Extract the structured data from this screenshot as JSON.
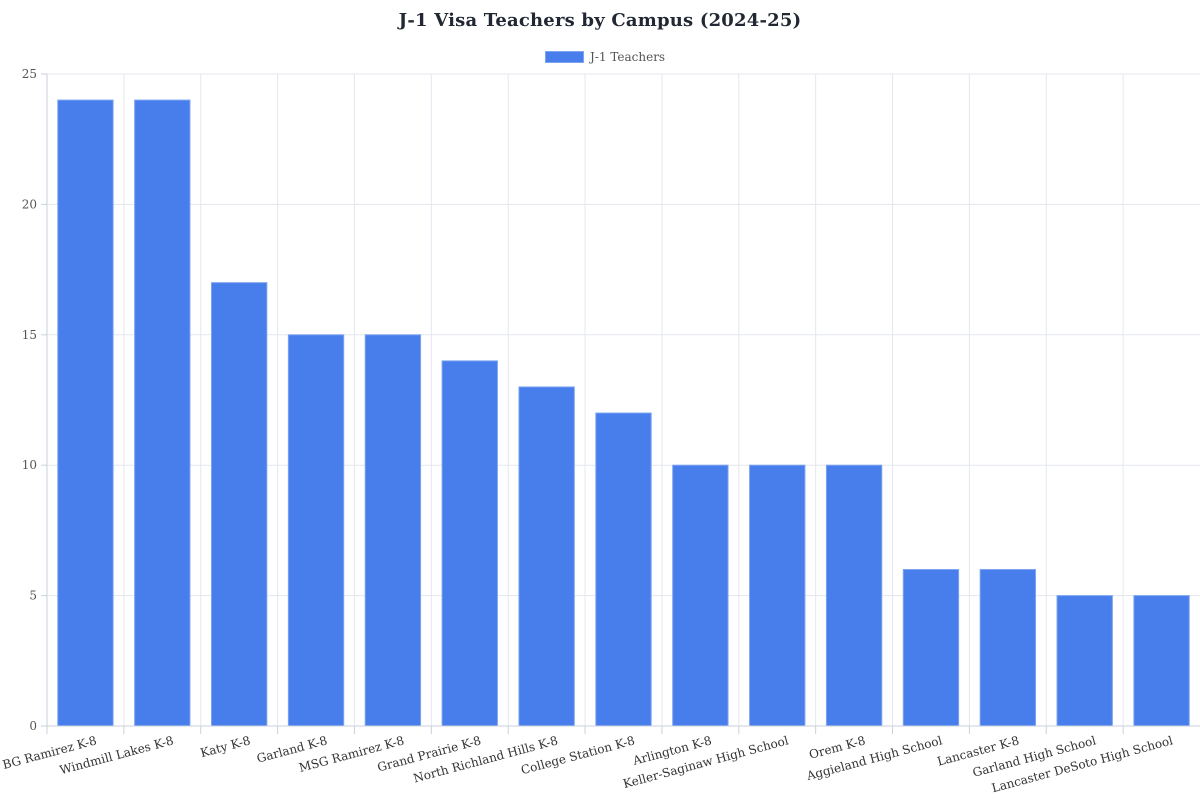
{
  "title": "J-1 Visa Teachers by Campus (2024-25)",
  "legend": {
    "label": "J-1 Teachers",
    "color": "#487EEC"
  },
  "colors": {
    "bar": "#487EEC",
    "bar_border": "#7ea3f0",
    "grid": "#e3e7ee",
    "axis": "#c9d1dd"
  },
  "chart_data": {
    "type": "bar",
    "title": "J-1 Visa Teachers by Campus (2024-25)",
    "xlabel": "",
    "ylabel": "",
    "ylim": [
      0,
      25
    ],
    "yticks": [
      0,
      5,
      10,
      15,
      20,
      25
    ],
    "grid": true,
    "legend_position": "top-center",
    "categories": [
      "BG Ramirez K-8",
      "Windmill Lakes K-8",
      "Katy K-8",
      "Garland K-8",
      "MSG Ramirez K-8",
      "Grand Prairie K-8",
      "North Richland Hills K-8",
      "College Station K-8",
      "Arlington K-8",
      "Keller-Saginaw High School",
      "Orem K-8",
      "Aggieland High School",
      "Lancaster K-8",
      "Garland High School",
      "Lancaster DeSoto High School"
    ],
    "series": [
      {
        "name": "J-1 Teachers",
        "values": [
          24,
          24,
          17,
          15,
          15,
          14,
          13,
          12,
          10,
          10,
          10,
          6,
          6,
          5,
          5
        ]
      }
    ]
  }
}
